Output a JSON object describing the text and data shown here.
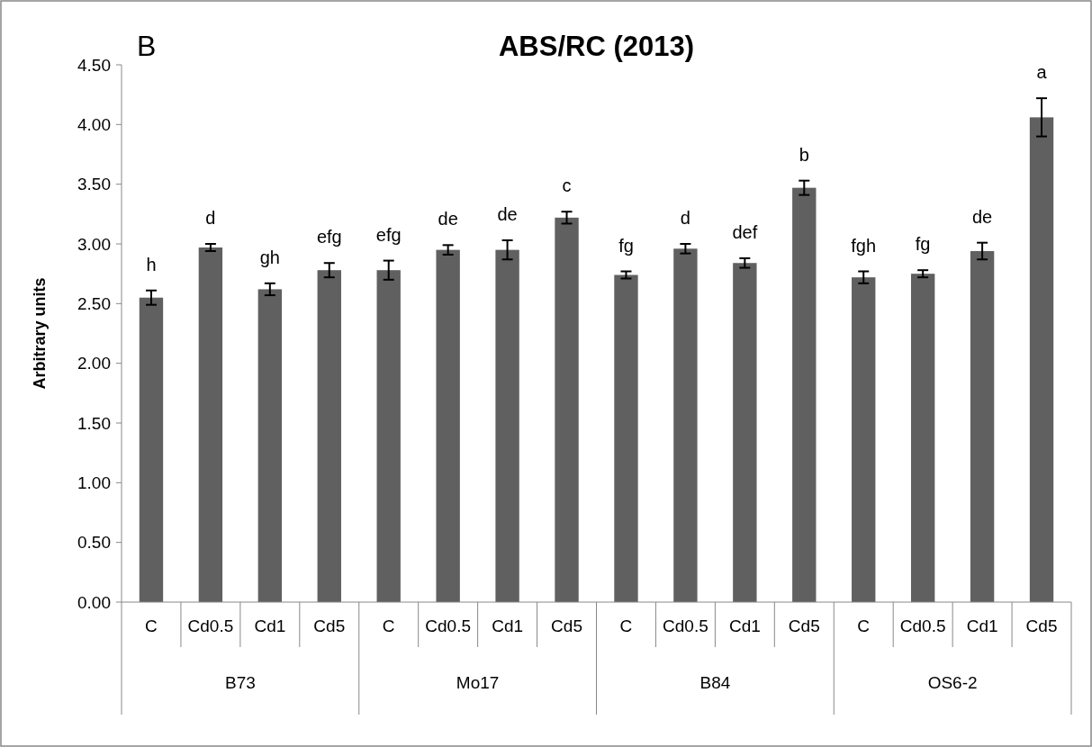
{
  "chart_data": {
    "type": "bar",
    "title": "ABS/RC (2013)",
    "ylabel": "Arbitrary units",
    "categories": [
      "C",
      "Cd0.5",
      "Cd1",
      "Cd5",
      "C",
      "Cd0.5",
      "Cd1",
      "Cd5",
      "C",
      "Cd0.5",
      "Cd1",
      "Cd5",
      "C",
      "Cd0.5",
      "Cd1",
      "Cd5"
    ],
    "values": [
      2.55,
      2.97,
      2.62,
      2.78,
      2.78,
      2.95,
      2.95,
      3.22,
      2.74,
      2.96,
      2.84,
      3.47,
      2.72,
      2.75,
      2.94,
      4.06
    ],
    "errors": [
      0.06,
      0.03,
      0.05,
      0.06,
      0.08,
      0.04,
      0.08,
      0.05,
      0.03,
      0.04,
      0.04,
      0.06,
      0.05,
      0.03,
      0.07,
      0.16
    ],
    "color": "#606060",
    "ylim": [
      0,
      4.5
    ],
    "yticks": [
      {
        "value": 0,
        "label": "0.00"
      },
      {
        "value": 0.5,
        "label": "0.50"
      },
      {
        "value": 1,
        "label": "1.00"
      },
      {
        "value": 1.5,
        "label": "1.50"
      },
      {
        "value": 2,
        "label": "2.00"
      },
      {
        "value": 2.5,
        "label": "2.50"
      },
      {
        "value": 3,
        "label": "3.00"
      },
      {
        "value": 3.5,
        "label": "3.50"
      },
      {
        "value": 4,
        "label": "4.00"
      },
      {
        "value": 4.5,
        "label": "4.50"
      }
    ],
    "grid": false,
    "annotations": [
      "B",
      "h",
      "d",
      "gh",
      "efg",
      "efg",
      "de",
      "de",
      "c",
      "fg",
      "d",
      "def",
      "b",
      "fgh",
      "fg",
      "de",
      "a",
      "B73",
      "Mo17",
      "B84",
      "OS6-2"
    ]
  }
}
